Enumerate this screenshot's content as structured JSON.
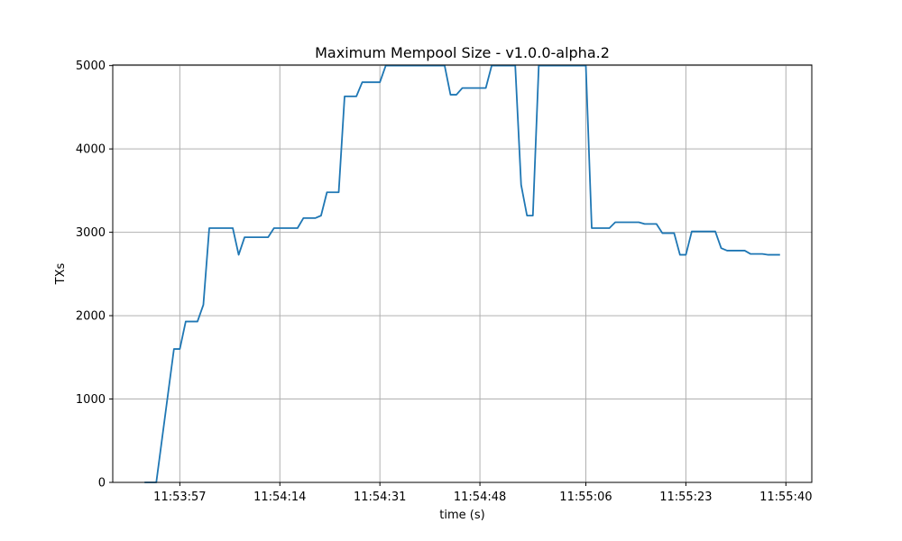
{
  "chart_data": {
    "type": "line",
    "title": "Maximum Mempool Size  -  v1.0.0-alpha.2",
    "xlabel": "time (s)",
    "ylabel": "TXs",
    "grid": true,
    "line_color": "#1f77b4",
    "x_ticks": [
      "11:53:57",
      "11:54:14",
      "11:54:31",
      "11:54:48",
      "11:55:06",
      "11:55:23",
      "11:55:40"
    ],
    "y_ticks": [
      0,
      1000,
      2000,
      3000,
      4000,
      5000
    ],
    "series": [
      {
        "points": [
          [
            "11:53:51",
            0
          ],
          [
            "11:53:53",
            0
          ],
          [
            "11:53:56",
            1600
          ],
          [
            "11:53:57",
            1600
          ],
          [
            "11:53:58",
            1930
          ],
          [
            "11:54:00",
            1930
          ],
          [
            "11:54:01",
            2130
          ],
          [
            "11:54:02",
            3050
          ],
          [
            "11:54:06",
            3050
          ],
          [
            "11:54:07",
            2730
          ],
          [
            "11:54:08",
            2940
          ],
          [
            "11:54:12",
            2940
          ],
          [
            "11:54:13",
            3050
          ],
          [
            "11:54:17",
            3050
          ],
          [
            "11:54:18",
            3170
          ],
          [
            "11:54:20",
            3170
          ],
          [
            "11:54:21",
            3200
          ],
          [
            "11:54:22",
            3480
          ],
          [
            "11:54:24",
            3480
          ],
          [
            "11:54:25",
            4630
          ],
          [
            "11:54:27",
            4630
          ],
          [
            "11:54:28",
            4800
          ],
          [
            "11:54:31",
            4800
          ],
          [
            "11:54:32",
            5000
          ],
          [
            "11:54:42",
            5000
          ],
          [
            "11:54:43",
            4650
          ],
          [
            "11:54:44",
            4650
          ],
          [
            "11:54:45",
            4730
          ],
          [
            "11:54:49",
            4730
          ],
          [
            "11:54:50",
            5000
          ],
          [
            "11:54:54",
            5000
          ],
          [
            "11:54:55",
            3570
          ],
          [
            "11:54:56",
            3200
          ],
          [
            "11:54:57",
            3200
          ],
          [
            "11:54:58",
            5000
          ],
          [
            "11:55:06",
            5000
          ],
          [
            "11:55:07",
            3050
          ],
          [
            "11:55:10",
            3050
          ],
          [
            "11:55:11",
            3120
          ],
          [
            "11:55:15",
            3120
          ],
          [
            "11:55:16",
            3100
          ],
          [
            "11:55:18",
            3100
          ],
          [
            "11:55:19",
            2990
          ],
          [
            "11:55:21",
            2990
          ],
          [
            "11:55:22",
            2730
          ],
          [
            "11:55:23",
            2730
          ],
          [
            "11:55:24",
            3010
          ],
          [
            "11:55:28",
            3010
          ],
          [
            "11:55:29",
            2810
          ],
          [
            "11:55:30",
            2780
          ],
          [
            "11:55:33",
            2780
          ],
          [
            "11:55:34",
            2740
          ],
          [
            "11:55:36",
            2740
          ],
          [
            "11:55:37",
            2730
          ],
          [
            "11:55:39",
            2730
          ]
        ]
      }
    ]
  }
}
